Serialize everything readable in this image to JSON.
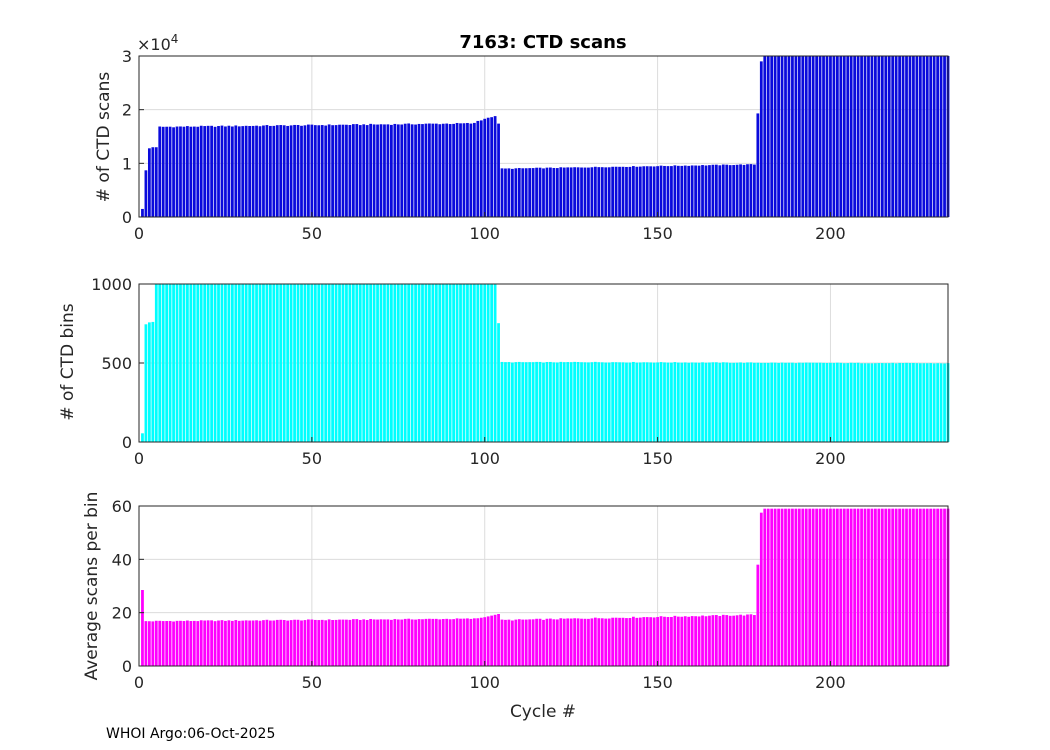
{
  "footer": "WHOI Argo:06-Oct-2025",
  "chart_data": [
    {
      "type": "bar",
      "title": "7163: CTD scans",
      "ylabel": "# of CTD scans",
      "xlabel": "",
      "y_exponent_label": "×10",
      "y_exponent": "4",
      "xlim": [
        0,
        234
      ],
      "ylim": [
        0,
        3
      ],
      "xticks": [
        "0",
        "50",
        "100",
        "150",
        "200"
      ],
      "yticks": [
        "0",
        "1",
        "2",
        "3"
      ],
      "color": "#0a0adc",
      "series": [
        {
          "name": "# of CTD scans (x10^4)",
          "segments": [
            {
              "from": 1,
              "to": 1,
              "values": [
                0.15
              ]
            },
            {
              "from": 2,
              "to": 2,
              "values": [
                0.87
              ]
            },
            {
              "from": 3,
              "to": 5,
              "values": [
                1.28,
                1.3,
                1.3
              ]
            },
            {
              "from": 6,
              "to": 104,
              "start": 1.68,
              "end": 1.75,
              "jitter": 0.012
            },
            {
              "from": 98,
              "to": 104,
              "values": [
                1.79,
                1.8,
                1.83,
                1.85,
                1.86,
                1.88,
                1.74
              ]
            },
            {
              "from": 105,
              "to": 178,
              "start": 0.9,
              "end": 0.98,
              "jitter": 0.008
            },
            {
              "from": 179,
              "to": 179,
              "values": [
                1.93
              ]
            },
            {
              "from": 180,
              "to": 180,
              "values": [
                2.9
              ]
            },
            {
              "from": 181,
              "to": 234,
              "start": 3.0,
              "end": 3.0,
              "jitter": 0.0
            }
          ]
        }
      ]
    },
    {
      "type": "bar",
      "title": "",
      "ylabel": "# of CTD bins",
      "xlabel": "",
      "xlim": [
        0,
        234
      ],
      "ylim": [
        0,
        1000
      ],
      "xticks": [
        "0",
        "50",
        "100",
        "150",
        "200"
      ],
      "yticks": [
        "0",
        "500",
        "1000"
      ],
      "color": "#00ffff",
      "series": [
        {
          "name": "# of CTD bins",
          "segments": [
            {
              "from": 1,
              "to": 1,
              "values": [
                55
              ]
            },
            {
              "from": 2,
              "to": 2,
              "values": [
                745
              ]
            },
            {
              "from": 3,
              "to": 4,
              "values": [
                757,
                760
              ]
            },
            {
              "from": 5,
              "to": 103,
              "start": 1000,
              "end": 1000,
              "jitter": 1.5
            },
            {
              "from": 104,
              "to": 104,
              "values": [
                752
              ]
            },
            {
              "from": 105,
              "to": 125,
              "start": 505,
              "end": 505,
              "jitter": 2
            },
            {
              "from": 126,
              "to": 234,
              "start": 506,
              "end": 498,
              "jitter": 2
            }
          ]
        }
      ]
    },
    {
      "type": "bar",
      "title": "",
      "ylabel": "Average scans per bin",
      "xlabel": "Cycle #",
      "xlim": [
        0,
        234
      ],
      "ylim": [
        0,
        60
      ],
      "xticks": [
        "0",
        "50",
        "100",
        "150",
        "200"
      ],
      "yticks": [
        "0",
        "20",
        "40",
        "60"
      ],
      "color": "#ff00ff",
      "series": [
        {
          "name": "Average scans per bin",
          "segments": [
            {
              "from": 1,
              "to": 1,
              "values": [
                28.5
              ]
            },
            {
              "from": 2,
              "to": 104,
              "start": 16.8,
              "end": 17.8,
              "jitter": 0.2
            },
            {
              "from": 98,
              "to": 104,
              "values": [
                17.9,
                18.1,
                18.3,
                18.6,
                18.9,
                19.2,
                19.5
              ]
            },
            {
              "from": 105,
              "to": 178,
              "start": 17.2,
              "end": 19.2,
              "jitter": 0.25
            },
            {
              "from": 179,
              "to": 179,
              "values": [
                38
              ]
            },
            {
              "from": 180,
              "to": 180,
              "values": [
                57.5
              ]
            },
            {
              "from": 181,
              "to": 234,
              "start": 59,
              "end": 59,
              "jitter": 0.0
            }
          ]
        }
      ]
    }
  ]
}
